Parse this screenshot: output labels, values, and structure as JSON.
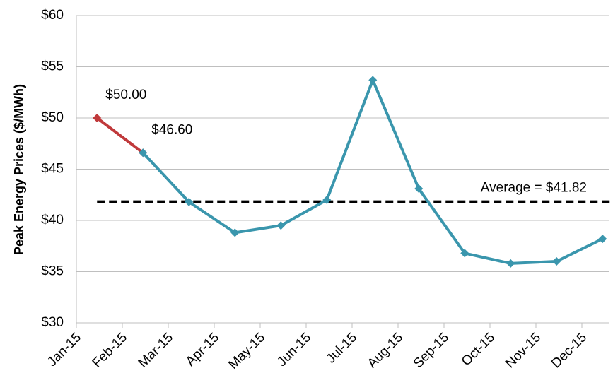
{
  "chart_data": {
    "type": "line",
    "y_label": "Peak Energy Prices ($/MWh)",
    "categories": [
      "Jan-15",
      "Feb-15",
      "Mar-15",
      "Apr-15",
      "May-15",
      "Jun-15",
      "Jul-15",
      "Aug-15",
      "Sep-15",
      "Oct-15",
      "Nov-15",
      "Dec-15"
    ],
    "series": [
      {
        "color": "#c0393b",
        "values": [
          50.0,
          46.6,
          null,
          null,
          null,
          null,
          null,
          null,
          null,
          null,
          null,
          null
        ],
        "value_labels": [
          "$50.00",
          "$46.60",
          null,
          null,
          null,
          null,
          null,
          null,
          null,
          null,
          null,
          null
        ]
      },
      {
        "color": "#3a96ad",
        "values": [
          null,
          46.6,
          41.8,
          38.8,
          39.5,
          42.0,
          53.7,
          43.1,
          36.8,
          35.8,
          36.0,
          38.2
        ]
      }
    ],
    "average": {
      "value": 41.82,
      "label": "Average = $41.82",
      "color": "#000000"
    },
    "ylim": [
      30,
      60
    ],
    "yticks": [
      {
        "value": 30,
        "label": "$30"
      },
      {
        "value": 35,
        "label": "$35"
      },
      {
        "value": 40,
        "label": "$40"
      },
      {
        "value": 45,
        "label": "$45"
      },
      {
        "value": 50,
        "label": "$50"
      },
      {
        "value": 55,
        "label": "$55"
      },
      {
        "value": 60,
        "label": "$60"
      }
    ],
    "grid": true
  }
}
